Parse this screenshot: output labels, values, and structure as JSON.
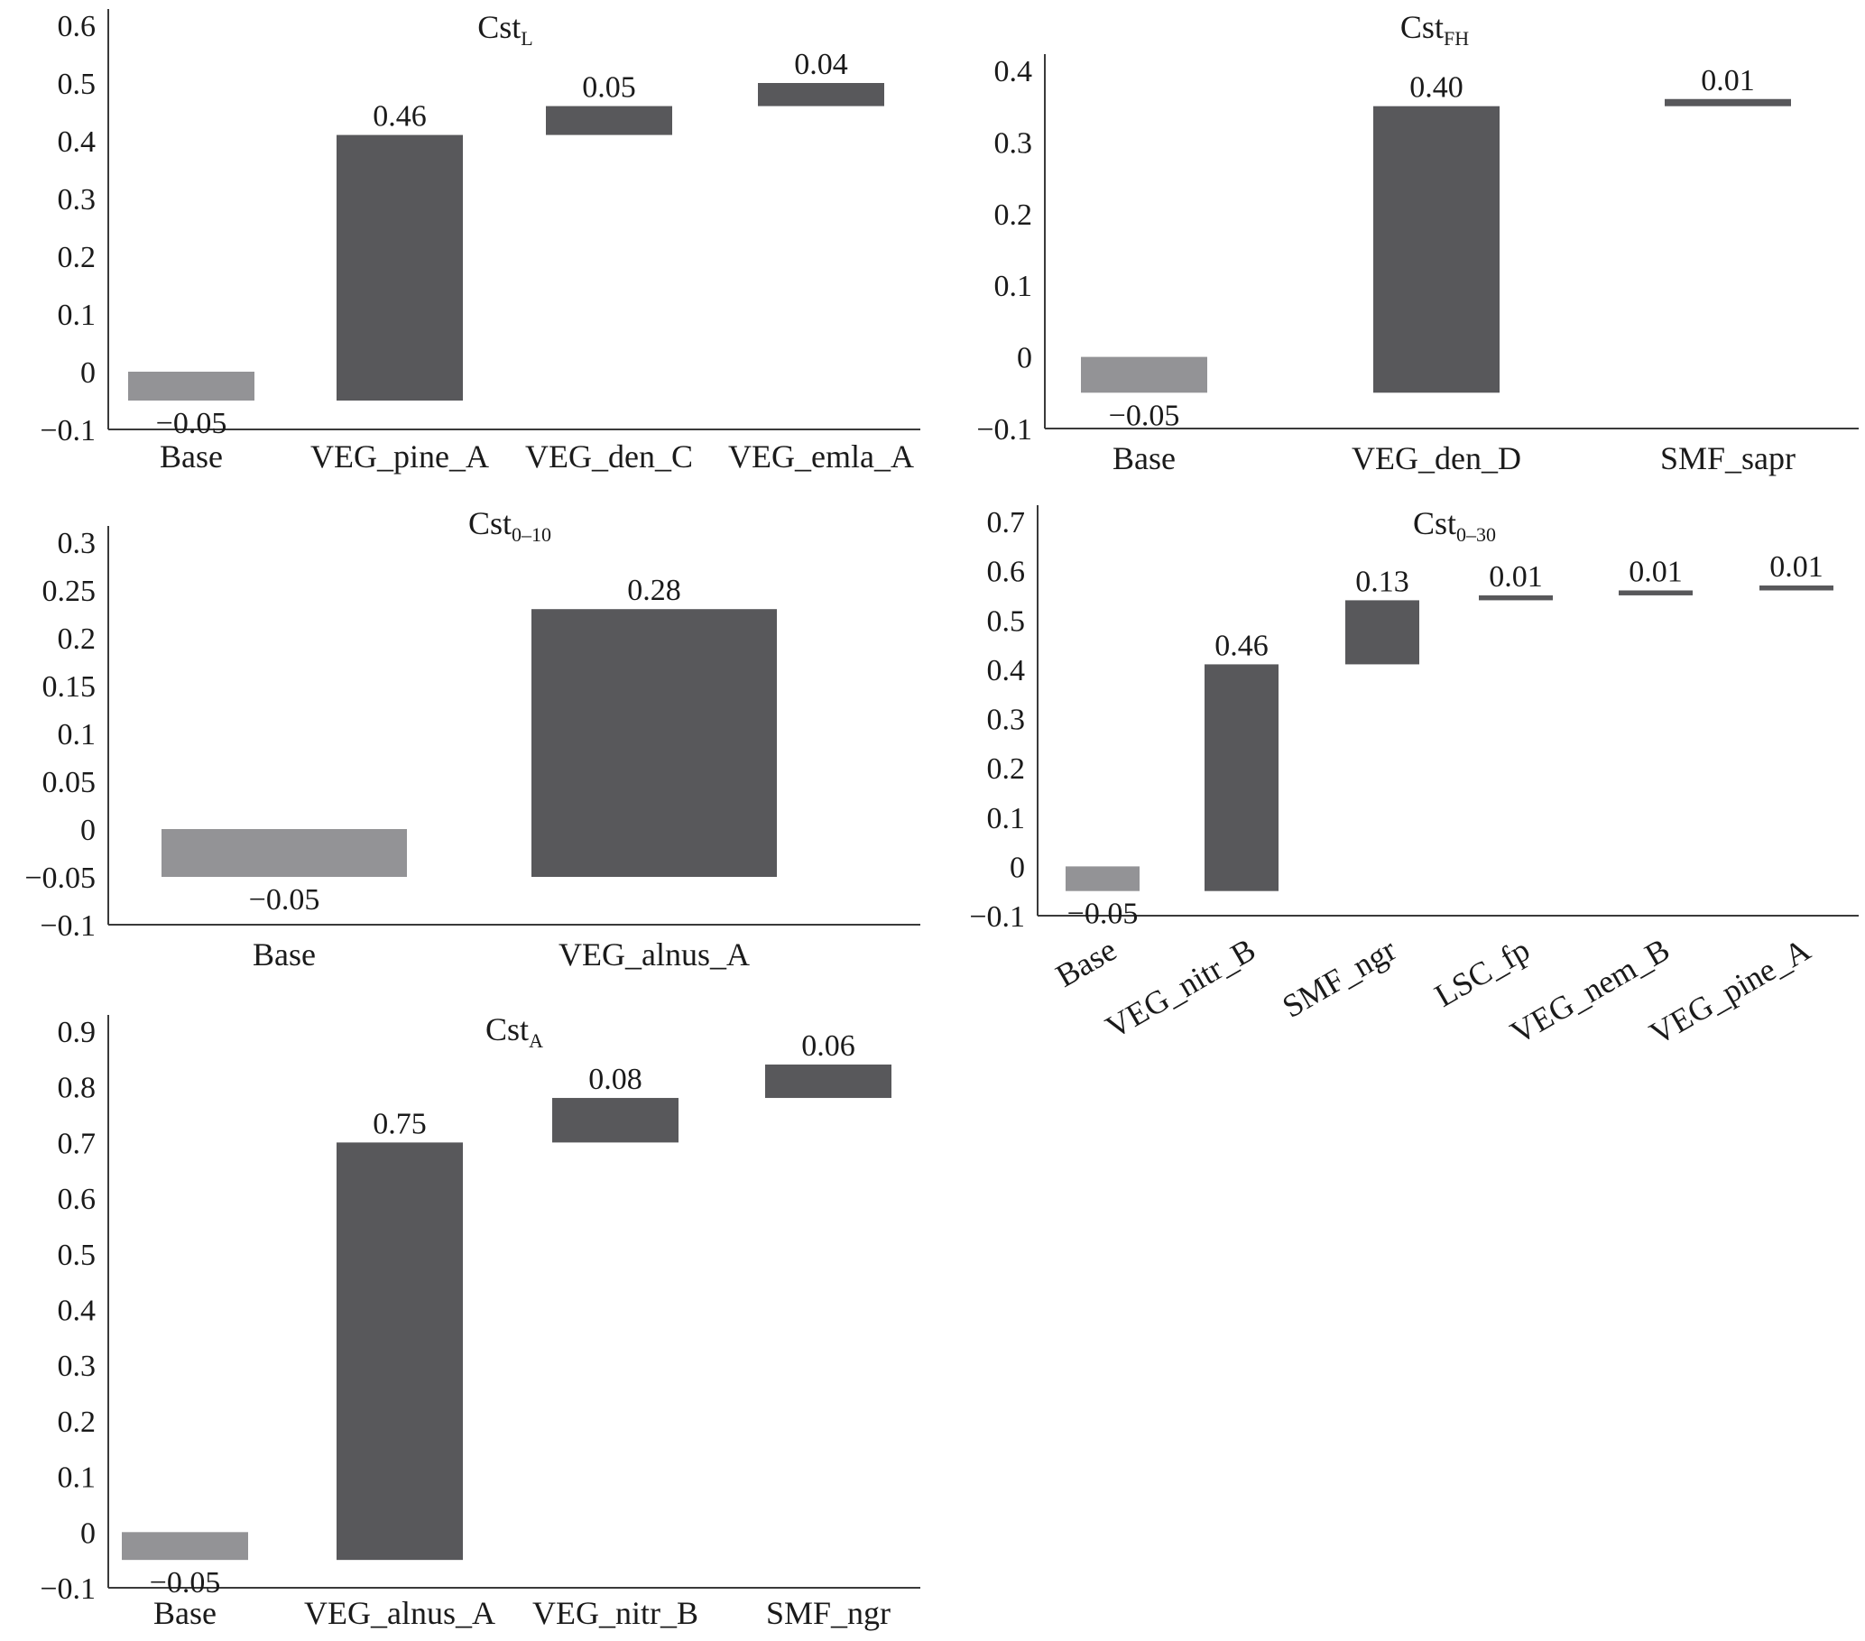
{
  "colors": {
    "base_bar": "#939396",
    "step_bar": "#58585b",
    "axis": "#3a3a3a",
    "text": "#1a1a1a"
  },
  "chart_data": [
    {
      "type": "bar",
      "subtype": "waterfall",
      "title": "Cst",
      "title_subscript": "L",
      "categories": [
        "Base",
        "VEG_pine_A",
        "VEG_den_C",
        "VEG_emla_A"
      ],
      "values": [
        -0.05,
        0.46,
        0.05,
        0.04
      ],
      "value_labels": [
        "−0.05",
        "0.46",
        "0.05",
        "0.04"
      ],
      "ylim": [
        -0.1,
        0.6
      ],
      "yticks": [
        0.6,
        0.5,
        0.4,
        0.3,
        0.2,
        0.1,
        0,
        -0.1
      ],
      "ytick_labels": [
        "0.6",
        "0.5",
        "0.4",
        "0.3",
        "0.2",
        "0.1",
        "0",
        "−0.1"
      ],
      "grid": false,
      "legend": "none"
    },
    {
      "type": "bar",
      "subtype": "waterfall",
      "title": "Cst",
      "title_subscript": "FH",
      "categories": [
        "Base",
        "VEG_den_D",
        "SMF_sapr"
      ],
      "values": [
        -0.05,
        0.4,
        0.01
      ],
      "value_labels": [
        "−0.05",
        "0.40",
        "0.01"
      ],
      "ylim": [
        -0.1,
        0.4
      ],
      "yticks": [
        0.4,
        0.3,
        0.2,
        0.1,
        0,
        -0.1
      ],
      "ytick_labels": [
        "0.4",
        "0.3",
        "0.2",
        "0.1",
        "0",
        "−0.1"
      ],
      "grid": false,
      "legend": "none"
    },
    {
      "type": "bar",
      "subtype": "waterfall",
      "title": "Cst",
      "title_subscript": "0–10",
      "categories": [
        "Base",
        "VEG_alnus_A"
      ],
      "values": [
        -0.05,
        0.28
      ],
      "value_labels": [
        "−0.05",
        "0.28"
      ],
      "ylim": [
        -0.1,
        0.3
      ],
      "yticks": [
        0.3,
        0.25,
        0.2,
        0.15,
        0.1,
        0.05,
        0,
        -0.05,
        -0.1
      ],
      "ytick_labels": [
        "0.3",
        "0.25",
        "0.2",
        "0.15",
        "0.1",
        "0.05",
        "0",
        "−0.05",
        "−0.1"
      ],
      "grid": false,
      "legend": "none"
    },
    {
      "type": "bar",
      "subtype": "waterfall",
      "title": "Cst",
      "title_subscript": "0–30",
      "categories": [
        "Base",
        "VEG_nitr_B",
        "SMF_ngr",
        "LSC_fp",
        "VEG_nem_B",
        "VEG_pine_A"
      ],
      "values": [
        -0.05,
        0.46,
        0.13,
        0.01,
        0.01,
        0.01
      ],
      "value_labels": [
        "−0.05",
        "0.46",
        "0.13",
        "0.01",
        "0.01",
        "0.01"
      ],
      "ylim": [
        -0.1,
        0.7
      ],
      "yticks": [
        0.7,
        0.6,
        0.5,
        0.4,
        0.3,
        0.2,
        0.1,
        0,
        -0.1
      ],
      "ytick_labels": [
        "0.7",
        "0.6",
        "0.5",
        "0.4",
        "0.3",
        "0.2",
        "0.1",
        "0",
        "−0.1"
      ],
      "rotated_category_labels": true,
      "grid": false,
      "legend": "none"
    },
    {
      "type": "bar",
      "subtype": "waterfall",
      "title": "Cst",
      "title_subscript": "A",
      "categories": [
        "Base",
        "VEG_alnus_A",
        "VEG_nitr_B",
        "SMF_ngr"
      ],
      "values": [
        -0.05,
        0.75,
        0.08,
        0.06
      ],
      "value_labels": [
        "−0.05",
        "0.75",
        "0.08",
        "0.06"
      ],
      "ylim": [
        -0.1,
        0.9
      ],
      "yticks": [
        0.9,
        0.8,
        0.7,
        0.6,
        0.5,
        0.4,
        0.3,
        0.2,
        0.1,
        0,
        -0.1
      ],
      "ytick_labels": [
        "0.9",
        "0.8",
        "0.7",
        "0.6",
        "0.5",
        "0.4",
        "0.3",
        "0.2",
        "0.1",
        "0",
        "−0.1"
      ],
      "grid": false,
      "legend": "none"
    }
  ]
}
